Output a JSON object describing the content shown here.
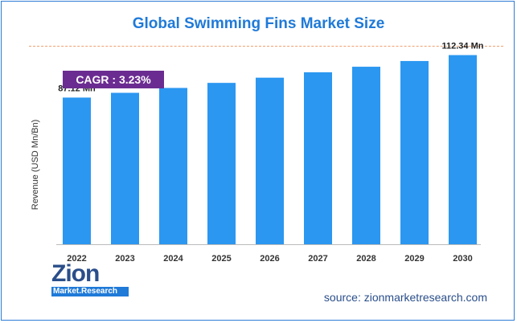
{
  "title": "Global Swimming Fins Market Size",
  "cagr_label": "CAGR : 3.23%",
  "source": "source: zionmarketresearch.com",
  "logo": {
    "main": "Zion",
    "sub": "Market.Research"
  },
  "colors": {
    "bar": "#2b97f1",
    "title": "#1f7ad8",
    "cagr_bg": "#6b2c91",
    "dashed_line": "#f0a070"
  },
  "chart_data": {
    "type": "bar",
    "title": "Global Swimming Fins Market Size",
    "xlabel": "",
    "ylabel": "Revenue (USD Mn/Bn)",
    "categories": [
      "2022",
      "2023",
      "2024",
      "2025",
      "2026",
      "2027",
      "2028",
      "2029",
      "2030"
    ],
    "values": [
      87.12,
      89.94,
      92.84,
      95.84,
      98.93,
      102.13,
      105.43,
      108.83,
      112.34
    ],
    "data_labels": [
      {
        "index": 0,
        "text": "87.12 Mn"
      },
      {
        "index": 8,
        "text": "112.34 Mn"
      }
    ],
    "ylim": [
      0,
      115
    ],
    "grid": false,
    "legend": "none"
  }
}
